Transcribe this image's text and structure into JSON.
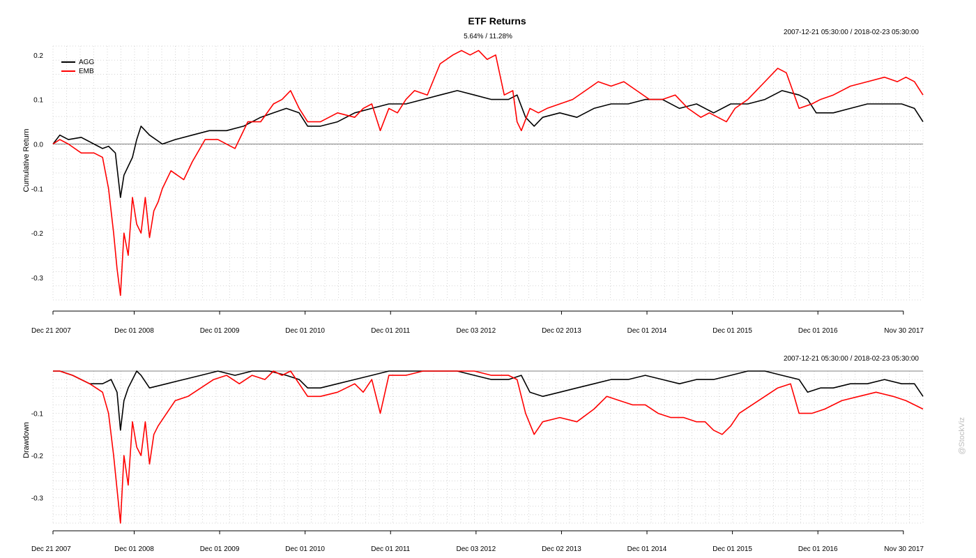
{
  "header": {
    "title": "ETF Returns",
    "subtitle": "5.64% / 11.28%",
    "range_top": "2007-12-21 05:30:00 / 2018-02-23 05:30:00",
    "range_bottom": "2007-12-21 05:30:00 / 2018-02-23 05:30:00"
  },
  "watermark": "@StockViz",
  "colors": {
    "AGG": "#000000",
    "EMB": "#ff0000",
    "grid": "#d3d3d3",
    "zero": "#808080"
  },
  "chart_data": [
    {
      "type": "line",
      "title": "ETF Returns",
      "subtitle": "5.64% / 11.28%",
      "xlabel": "",
      "ylabel": "Cumulative Return",
      "x_tick_labels": [
        "Dec 21 2007",
        "Dec 01 2008",
        "Dec 01 2009",
        "Dec 01 2010",
        "Dec 01 2011",
        "Dec 03 2012",
        "Dec 02 2013",
        "Dec 01 2014",
        "Dec 01 2015",
        "Dec 01 2016",
        "Nov 30 2017"
      ],
      "x_ticks": [
        2007.97,
        2008.92,
        2009.92,
        2010.92,
        2011.92,
        2012.92,
        2013.92,
        2014.92,
        2015.92,
        2016.92,
        2017.92
      ],
      "xlim": [
        2007.97,
        2018.15
      ],
      "ylim": [
        -0.35,
        0.22
      ],
      "y_ticks": [
        0.2,
        0.1,
        0.0,
        -0.1,
        -0.2,
        -0.3
      ],
      "y_tick_labels": [
        "0.2",
        "0.1",
        "0.0",
        "-0.1",
        "-0.2",
        "-0.3"
      ],
      "grid": true,
      "legend": "top-left",
      "series": [
        {
          "name": "AGG",
          "x": [
            2007.97,
            2008.05,
            2008.15,
            2008.3,
            2008.45,
            2008.55,
            2008.62,
            2008.7,
            2008.76,
            2008.8,
            2008.85,
            2008.9,
            2008.95,
            2009.0,
            2009.1,
            2009.25,
            2009.4,
            2009.6,
            2009.8,
            2010.0,
            2010.2,
            2010.4,
            2010.55,
            2010.7,
            2010.85,
            2010.95,
            2011.1,
            2011.3,
            2011.5,
            2011.7,
            2011.9,
            2012.1,
            2012.3,
            2012.5,
            2012.7,
            2012.9,
            2013.1,
            2013.3,
            2013.4,
            2013.5,
            2013.6,
            2013.7,
            2013.9,
            2014.1,
            2014.3,
            2014.5,
            2014.7,
            2014.9,
            2015.1,
            2015.3,
            2015.5,
            2015.7,
            2015.9,
            2016.1,
            2016.3,
            2016.5,
            2016.7,
            2016.8,
            2016.9,
            2017.1,
            2017.3,
            2017.5,
            2017.7,
            2017.9,
            2018.05,
            2018.15
          ],
          "y": [
            0.0,
            0.02,
            0.01,
            0.015,
            0.0,
            -0.01,
            -0.005,
            -0.02,
            -0.12,
            -0.07,
            -0.05,
            -0.03,
            0.01,
            0.04,
            0.02,
            0.0,
            0.01,
            0.02,
            0.03,
            0.03,
            0.04,
            0.06,
            0.07,
            0.08,
            0.07,
            0.04,
            0.04,
            0.05,
            0.07,
            0.08,
            0.09,
            0.09,
            0.1,
            0.11,
            0.12,
            0.11,
            0.1,
            0.1,
            0.11,
            0.06,
            0.04,
            0.06,
            0.07,
            0.06,
            0.08,
            0.09,
            0.09,
            0.1,
            0.1,
            0.08,
            0.09,
            0.07,
            0.09,
            0.09,
            0.1,
            0.12,
            0.11,
            0.1,
            0.07,
            0.07,
            0.08,
            0.09,
            0.09,
            0.09,
            0.08,
            0.05
          ]
        },
        {
          "name": "EMB",
          "x": [
            2007.97,
            2008.05,
            2008.15,
            2008.3,
            2008.45,
            2008.55,
            2008.62,
            2008.68,
            2008.72,
            2008.76,
            2008.8,
            2008.85,
            2008.9,
            2008.95,
            2009.0,
            2009.05,
            2009.1,
            2009.15,
            2009.2,
            2009.25,
            2009.35,
            2009.5,
            2009.6,
            2009.75,
            2009.9,
            2010.1,
            2010.25,
            2010.4,
            2010.55,
            2010.65,
            2010.75,
            2010.85,
            2010.95,
            2011.1,
            2011.3,
            2011.5,
            2011.6,
            2011.7,
            2011.8,
            2011.9,
            2012.0,
            2012.1,
            2012.2,
            2012.35,
            2012.5,
            2012.65,
            2012.75,
            2012.85,
            2012.95,
            2013.05,
            2013.15,
            2013.25,
            2013.35,
            2013.4,
            2013.45,
            2013.55,
            2013.65,
            2013.75,
            2013.9,
            2014.05,
            2014.2,
            2014.35,
            2014.5,
            2014.65,
            2014.8,
            2014.95,
            2015.1,
            2015.25,
            2015.4,
            2015.55,
            2015.65,
            2015.75,
            2015.85,
            2015.95,
            2016.1,
            2016.25,
            2016.45,
            2016.55,
            2016.7,
            2016.85,
            2016.95,
            2017.1,
            2017.3,
            2017.5,
            2017.7,
            2017.85,
            2017.95,
            2018.05,
            2018.15
          ],
          "y": [
            0.0,
            0.01,
            0.0,
            -0.02,
            -0.02,
            -0.03,
            -0.1,
            -0.2,
            -0.28,
            -0.34,
            -0.2,
            -0.25,
            -0.12,
            -0.18,
            -0.2,
            -0.12,
            -0.21,
            -0.15,
            -0.13,
            -0.1,
            -0.06,
            -0.08,
            -0.04,
            0.01,
            0.01,
            -0.01,
            0.05,
            0.05,
            0.09,
            0.1,
            0.12,
            0.08,
            0.05,
            0.05,
            0.07,
            0.06,
            0.08,
            0.09,
            0.03,
            0.08,
            0.07,
            0.1,
            0.12,
            0.11,
            0.18,
            0.2,
            0.21,
            0.2,
            0.21,
            0.19,
            0.2,
            0.11,
            0.12,
            0.05,
            0.03,
            0.08,
            0.07,
            0.08,
            0.09,
            0.1,
            0.12,
            0.14,
            0.13,
            0.14,
            0.12,
            0.1,
            0.1,
            0.11,
            0.08,
            0.06,
            0.07,
            0.06,
            0.05,
            0.08,
            0.1,
            0.13,
            0.17,
            0.16,
            0.08,
            0.09,
            0.1,
            0.11,
            0.13,
            0.14,
            0.15,
            0.14,
            0.15,
            0.14,
            0.11
          ]
        }
      ]
    },
    {
      "type": "line",
      "title": "",
      "xlabel": "",
      "ylabel": "Drawdown",
      "x_tick_labels": [
        "Dec 21 2007",
        "Dec 01 2008",
        "Dec 01 2009",
        "Dec 01 2010",
        "Dec 01 2011",
        "Dec 03 2012",
        "Dec 02 2013",
        "Dec 01 2014",
        "Dec 01 2015",
        "Dec 01 2016",
        "Nov 30 2017"
      ],
      "x_ticks": [
        2007.97,
        2008.92,
        2009.92,
        2010.92,
        2011.92,
        2012.92,
        2013.92,
        2014.92,
        2015.92,
        2016.92,
        2017.92
      ],
      "xlim": [
        2007.97,
        2018.15
      ],
      "ylim": [
        -0.36,
        0.0
      ],
      "y_ticks": [
        -0.1,
        -0.2,
        -0.3
      ],
      "y_tick_labels": [
        "-0.1",
        "-0.2",
        "-0.3"
      ],
      "grid": true,
      "series": [
        {
          "name": "AGG",
          "x": [
            2007.97,
            2008.05,
            2008.2,
            2008.4,
            2008.55,
            2008.65,
            2008.72,
            2008.76,
            2008.8,
            2008.85,
            2008.9,
            2008.95,
            2009.0,
            2009.1,
            2009.3,
            2009.5,
            2009.7,
            2009.9,
            2010.1,
            2010.3,
            2010.5,
            2010.7,
            2010.85,
            2010.95,
            2011.1,
            2011.3,
            2011.5,
            2011.7,
            2011.9,
            2012.1,
            2012.3,
            2012.5,
            2012.7,
            2012.9,
            2013.1,
            2013.3,
            2013.45,
            2013.55,
            2013.7,
            2013.9,
            2014.1,
            2014.3,
            2014.5,
            2014.7,
            2014.9,
            2015.1,
            2015.3,
            2015.5,
            2015.7,
            2015.9,
            2016.1,
            2016.3,
            2016.5,
            2016.7,
            2016.8,
            2016.95,
            2017.1,
            2017.3,
            2017.5,
            2017.7,
            2017.9,
            2018.05,
            2018.15
          ],
          "y": [
            0.0,
            0.0,
            -0.01,
            -0.03,
            -0.03,
            -0.02,
            -0.05,
            -0.14,
            -0.07,
            -0.04,
            -0.02,
            0.0,
            -0.01,
            -0.04,
            -0.03,
            -0.02,
            -0.01,
            0.0,
            -0.01,
            0.0,
            0.0,
            -0.01,
            -0.02,
            -0.04,
            -0.04,
            -0.03,
            -0.02,
            -0.01,
            0.0,
            0.0,
            0.0,
            0.0,
            0.0,
            -0.01,
            -0.02,
            -0.02,
            -0.01,
            -0.05,
            -0.06,
            -0.05,
            -0.04,
            -0.03,
            -0.02,
            -0.02,
            -0.01,
            -0.02,
            -0.03,
            -0.02,
            -0.02,
            -0.01,
            0.0,
            0.0,
            -0.01,
            -0.02,
            -0.05,
            -0.04,
            -0.04,
            -0.03,
            -0.03,
            -0.02,
            -0.03,
            -0.03,
            -0.06
          ]
        },
        {
          "name": "EMB",
          "x": [
            2007.97,
            2008.05,
            2008.2,
            2008.4,
            2008.55,
            2008.62,
            2008.68,
            2008.72,
            2008.76,
            2008.8,
            2008.85,
            2008.9,
            2008.95,
            2009.0,
            2009.05,
            2009.1,
            2009.15,
            2009.2,
            2009.3,
            2009.4,
            2009.55,
            2009.7,
            2009.85,
            2010.0,
            2010.15,
            2010.3,
            2010.45,
            2010.55,
            2010.65,
            2010.75,
            2010.85,
            2010.95,
            2011.1,
            2011.3,
            2011.5,
            2011.6,
            2011.7,
            2011.8,
            2011.9,
            2012.1,
            2012.3,
            2012.5,
            2012.7,
            2012.9,
            2013.1,
            2013.3,
            2013.4,
            2013.5,
            2013.6,
            2013.7,
            2013.9,
            2014.1,
            2014.3,
            2014.45,
            2014.6,
            2014.75,
            2014.9,
            2015.05,
            2015.2,
            2015.35,
            2015.5,
            2015.6,
            2015.7,
            2015.8,
            2015.9,
            2016.0,
            2016.15,
            2016.3,
            2016.45,
            2016.6,
            2016.7,
            2016.85,
            2017.0,
            2017.2,
            2017.4,
            2017.6,
            2017.8,
            2017.95,
            2018.05,
            2018.15
          ],
          "y": [
            0.0,
            0.0,
            -0.01,
            -0.03,
            -0.05,
            -0.1,
            -0.2,
            -0.28,
            -0.36,
            -0.2,
            -0.27,
            -0.12,
            -0.18,
            -0.2,
            -0.12,
            -0.22,
            -0.15,
            -0.13,
            -0.1,
            -0.07,
            -0.06,
            -0.04,
            -0.02,
            -0.01,
            -0.03,
            -0.01,
            -0.02,
            0.0,
            -0.01,
            0.0,
            -0.03,
            -0.06,
            -0.06,
            -0.05,
            -0.03,
            -0.05,
            -0.02,
            -0.1,
            -0.01,
            -0.01,
            0.0,
            0.0,
            0.0,
            0.0,
            -0.01,
            -0.01,
            -0.02,
            -0.1,
            -0.15,
            -0.12,
            -0.11,
            -0.12,
            -0.09,
            -0.06,
            -0.07,
            -0.08,
            -0.08,
            -0.1,
            -0.11,
            -0.11,
            -0.12,
            -0.12,
            -0.14,
            -0.15,
            -0.13,
            -0.1,
            -0.08,
            -0.06,
            -0.04,
            -0.03,
            -0.1,
            -0.1,
            -0.09,
            -0.07,
            -0.06,
            -0.05,
            -0.06,
            -0.07,
            -0.08,
            -0.09
          ]
        }
      ]
    }
  ]
}
